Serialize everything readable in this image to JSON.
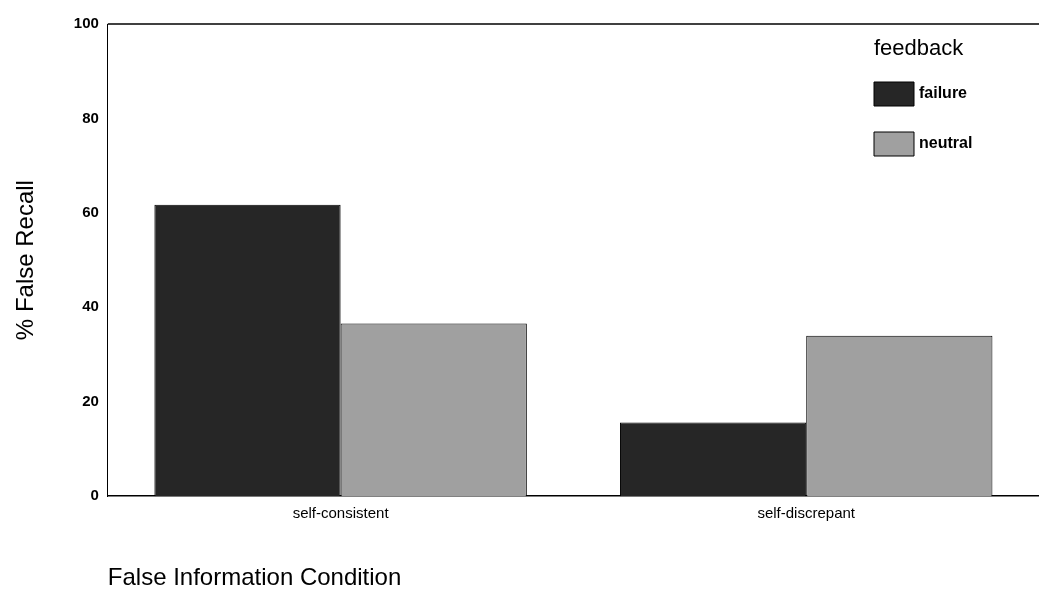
{
  "chart_data": {
    "type": "bar",
    "xlabel": "False Information Condition",
    "ylabel": "% False Recall",
    "legend_title": "feedback",
    "categories": [
      "self-consistent",
      "self-discrepant"
    ],
    "series": [
      {
        "name": "failure",
        "color": "#262626",
        "values": [
          61.7,
          15.6
        ]
      },
      {
        "name": "neutral",
        "color": "#a0a0a0",
        "values": [
          36.6,
          34
        ]
      }
    ],
    "ylim": [
      0,
      100
    ],
    "yticks": [
      0,
      20,
      40,
      60,
      80,
      100
    ],
    "grid": false,
    "legend": "top right"
  }
}
